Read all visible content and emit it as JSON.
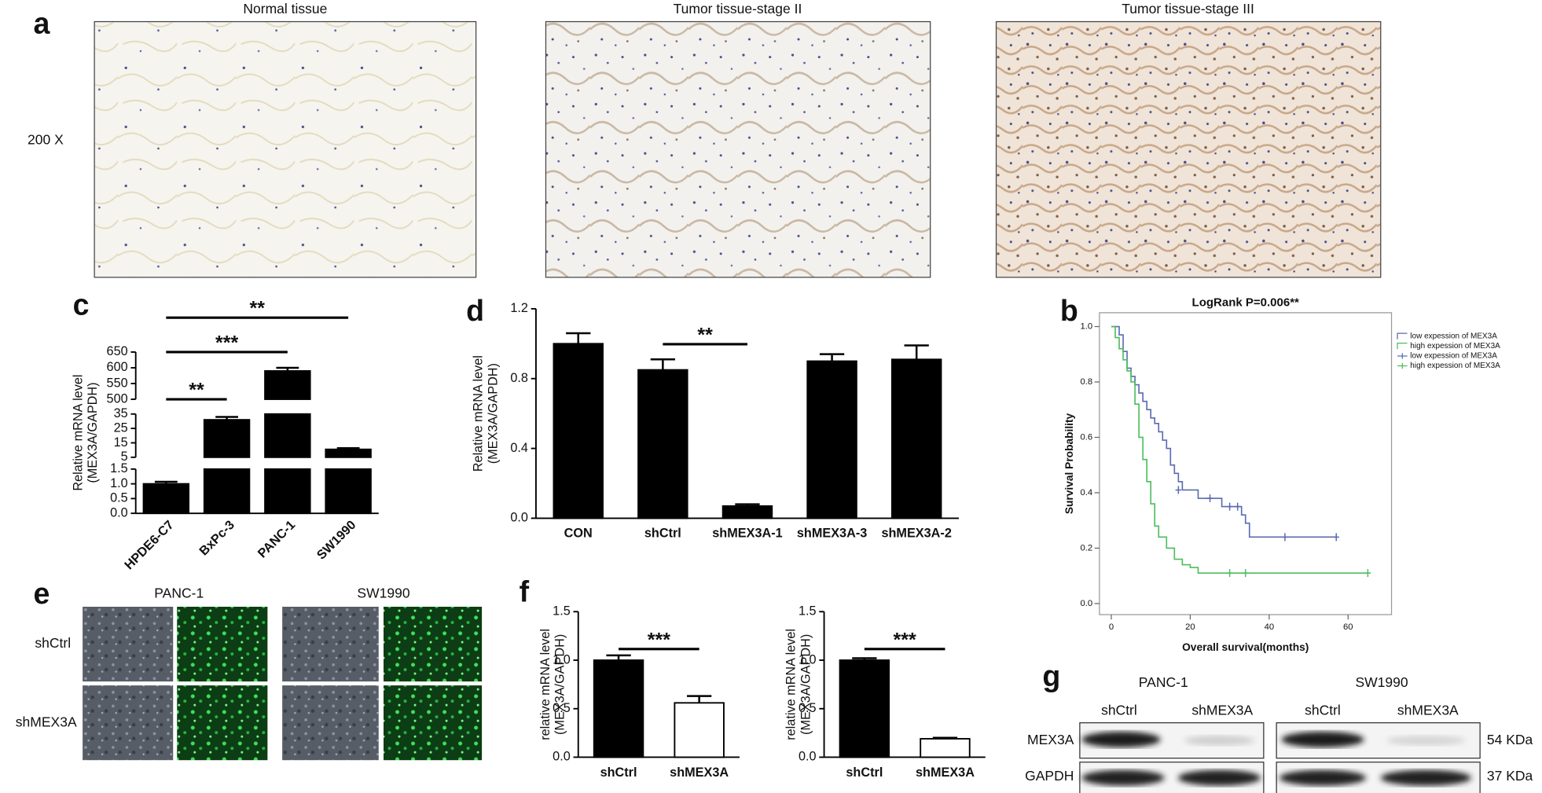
{
  "panels": {
    "a": {
      "label": "a",
      "titles": [
        "Normal tissue",
        "Tumor tissue-stage II",
        "Tumor tissue-stage III"
      ],
      "magnification": "200 X"
    },
    "e": {
      "label": "e",
      "columns": [
        "PANC-1",
        "SW1990"
      ],
      "rows": [
        "shCtrl",
        "shMEX3A"
      ]
    },
    "g": {
      "label": "g",
      "cell_lines": [
        "PANC-1",
        "SW1990"
      ],
      "lanes": [
        "shCtrl",
        "shMEX3A",
        "shCtrl",
        "shMEX3A"
      ],
      "proteins": [
        "MEX3A",
        "GAPDH"
      ],
      "sizes": [
        "54 KDa",
        "37 KDa"
      ]
    }
  },
  "chart_data": [
    {
      "panel_label": "c",
      "type": "bar",
      "ylabel": [
        "Relative mRNA level",
        "(MEX3A/GAPDH)"
      ],
      "categories": [
        "HPDE6-C7",
        "BxPc-3",
        "PANC-1",
        "SW1990"
      ],
      "values": [
        1.0,
        31,
        590,
        10.5
      ],
      "errors": [
        0.07,
        2,
        10,
        0.8
      ],
      "color": "#000000",
      "xlabel_rotation": -45,
      "y_segments": [
        {
          "ylim": [
            0,
            1.5
          ],
          "yticks": [
            {
              "value": 0,
              "label": "0.0"
            },
            0.5,
            {
              "value": 1,
              "label": "1.0"
            },
            1.5
          ]
        },
        {
          "ylim": [
            5,
            35
          ],
          "yticks": [
            5,
            15,
            25,
            35
          ]
        },
        {
          "ylim": [
            500,
            650
          ],
          "yticks": [
            500,
            550,
            600,
            650
          ]
        }
      ],
      "annotations": [
        {
          "text": "**",
          "between": [
            0,
            1
          ]
        },
        {
          "text": "***",
          "between": [
            0,
            2
          ]
        },
        {
          "text": "**",
          "between": [
            0,
            3
          ]
        }
      ]
    },
    {
      "panel_label": "d",
      "type": "bar",
      "ylabel": [
        "Relative mRNA level",
        "(MEX3A/GAPDH)"
      ],
      "categories": [
        "CON",
        "shCtrl",
        "shMEX3A-1",
        "shMEX3A-3",
        "shMEX3A-2"
      ],
      "values": [
        1.0,
        0.85,
        0.07,
        0.9,
        0.91
      ],
      "errors": [
        0.06,
        0.06,
        0.01,
        0.04,
        0.08
      ],
      "color": "#000000",
      "ylim": [
        0,
        1.2
      ],
      "yticks": [
        {
          "value": 0,
          "label": "0.0"
        },
        0.4,
        0.8,
        1.2
      ],
      "annotations": [
        {
          "text": "**",
          "between": [
            1,
            2
          ]
        }
      ]
    },
    {
      "panel_label": "b",
      "type": "step",
      "title": "LogRank P=0.006**",
      "xlabel": "Overall survival(months)",
      "ylabel": "Survival Probability",
      "xlim": [
        -3,
        71
      ],
      "ylim": [
        -0.04,
        1.05
      ],
      "xticks": [
        0,
        20,
        40,
        60
      ],
      "yticks": [
        {
          "value": 0,
          "label": "0.0"
        },
        0.2,
        0.4,
        0.6,
        0.8,
        {
          "value": 1,
          "label": "1.0"
        }
      ],
      "legend": "right",
      "series": [
        {
          "name": "low expession of MEX3A",
          "censor_name": "low expession of MEX3A",
          "color": "#5a6bb0",
          "x": [
            0,
            2,
            3,
            4,
            5,
            6,
            7,
            8,
            9,
            10,
            11,
            12,
            13,
            14,
            15,
            16,
            17,
            18,
            22,
            28,
            33,
            34,
            35,
            57
          ],
          "values": [
            1,
            0.97,
            0.91,
            0.85,
            0.82,
            0.79,
            0.76,
            0.73,
            0.7,
            0.67,
            0.65,
            0.62,
            0.59,
            0.56,
            0.5,
            0.47,
            0.44,
            0.41,
            0.38,
            0.35,
            0.32,
            0.29,
            0.24,
            0.24
          ],
          "censored": {
            "x": [
              17,
              25,
              30,
              32,
              44,
              57
            ],
            "values": [
              0.41,
              0.38,
              0.35,
              0.35,
              0.24,
              0.24
            ]
          }
        },
        {
          "name": "high expession of MEX3A",
          "censor_name": "high expession of MEX3A",
          "color": "#4dbd5c",
          "x": [
            0,
            1,
            2,
            3,
            4,
            5,
            6,
            7,
            8,
            9,
            10,
            11,
            12,
            14,
            16,
            18,
            20,
            22,
            65
          ],
          "values": [
            1,
            0.96,
            0.92,
            0.88,
            0.84,
            0.8,
            0.72,
            0.6,
            0.52,
            0.44,
            0.36,
            0.28,
            0.24,
            0.2,
            0.16,
            0.14,
            0.13,
            0.11,
            0.11
          ],
          "censored": {
            "x": [
              30,
              34,
              65
            ],
            "values": [
              0.11,
              0.11,
              0.11
            ]
          }
        }
      ]
    },
    {
      "panel_label": "f",
      "type": "bar",
      "ylabel": [
        "relative mRNA level",
        "(MEX3A/GAPDH)"
      ],
      "categories": [
        "shCtrl",
        "shMEX3A"
      ],
      "values": [
        1.0,
        0.56
      ],
      "errors": [
        0.05,
        0.07
      ],
      "colors": [
        "#000000",
        "#ffffff"
      ],
      "ylim": [
        0,
        1.5
      ],
      "yticks": [
        {
          "value": 0,
          "label": "0.0"
        },
        0.5,
        {
          "value": 1,
          "label": "1.0"
        },
        1.5
      ],
      "annotations": [
        {
          "text": "***",
          "between": [
            0,
            1
          ]
        }
      ]
    },
    {
      "type": "bar",
      "ylabel": [
        "relative mRNA level",
        "(MEX3A/GAPDH)"
      ],
      "categories": [
        "shCtrl",
        "shMEX3A"
      ],
      "values": [
        1.0,
        0.19
      ],
      "errors": [
        0.02,
        0.01
      ],
      "colors": [
        "#000000",
        "#ffffff"
      ],
      "ylim": [
        0,
        1.5
      ],
      "yticks": [
        {
          "value": 0,
          "label": "0.0"
        },
        0.5,
        {
          "value": 1,
          "label": "1.0"
        },
        1.5
      ],
      "annotations": [
        {
          "text": "***",
          "between": [
            0,
            1
          ]
        }
      ]
    }
  ]
}
